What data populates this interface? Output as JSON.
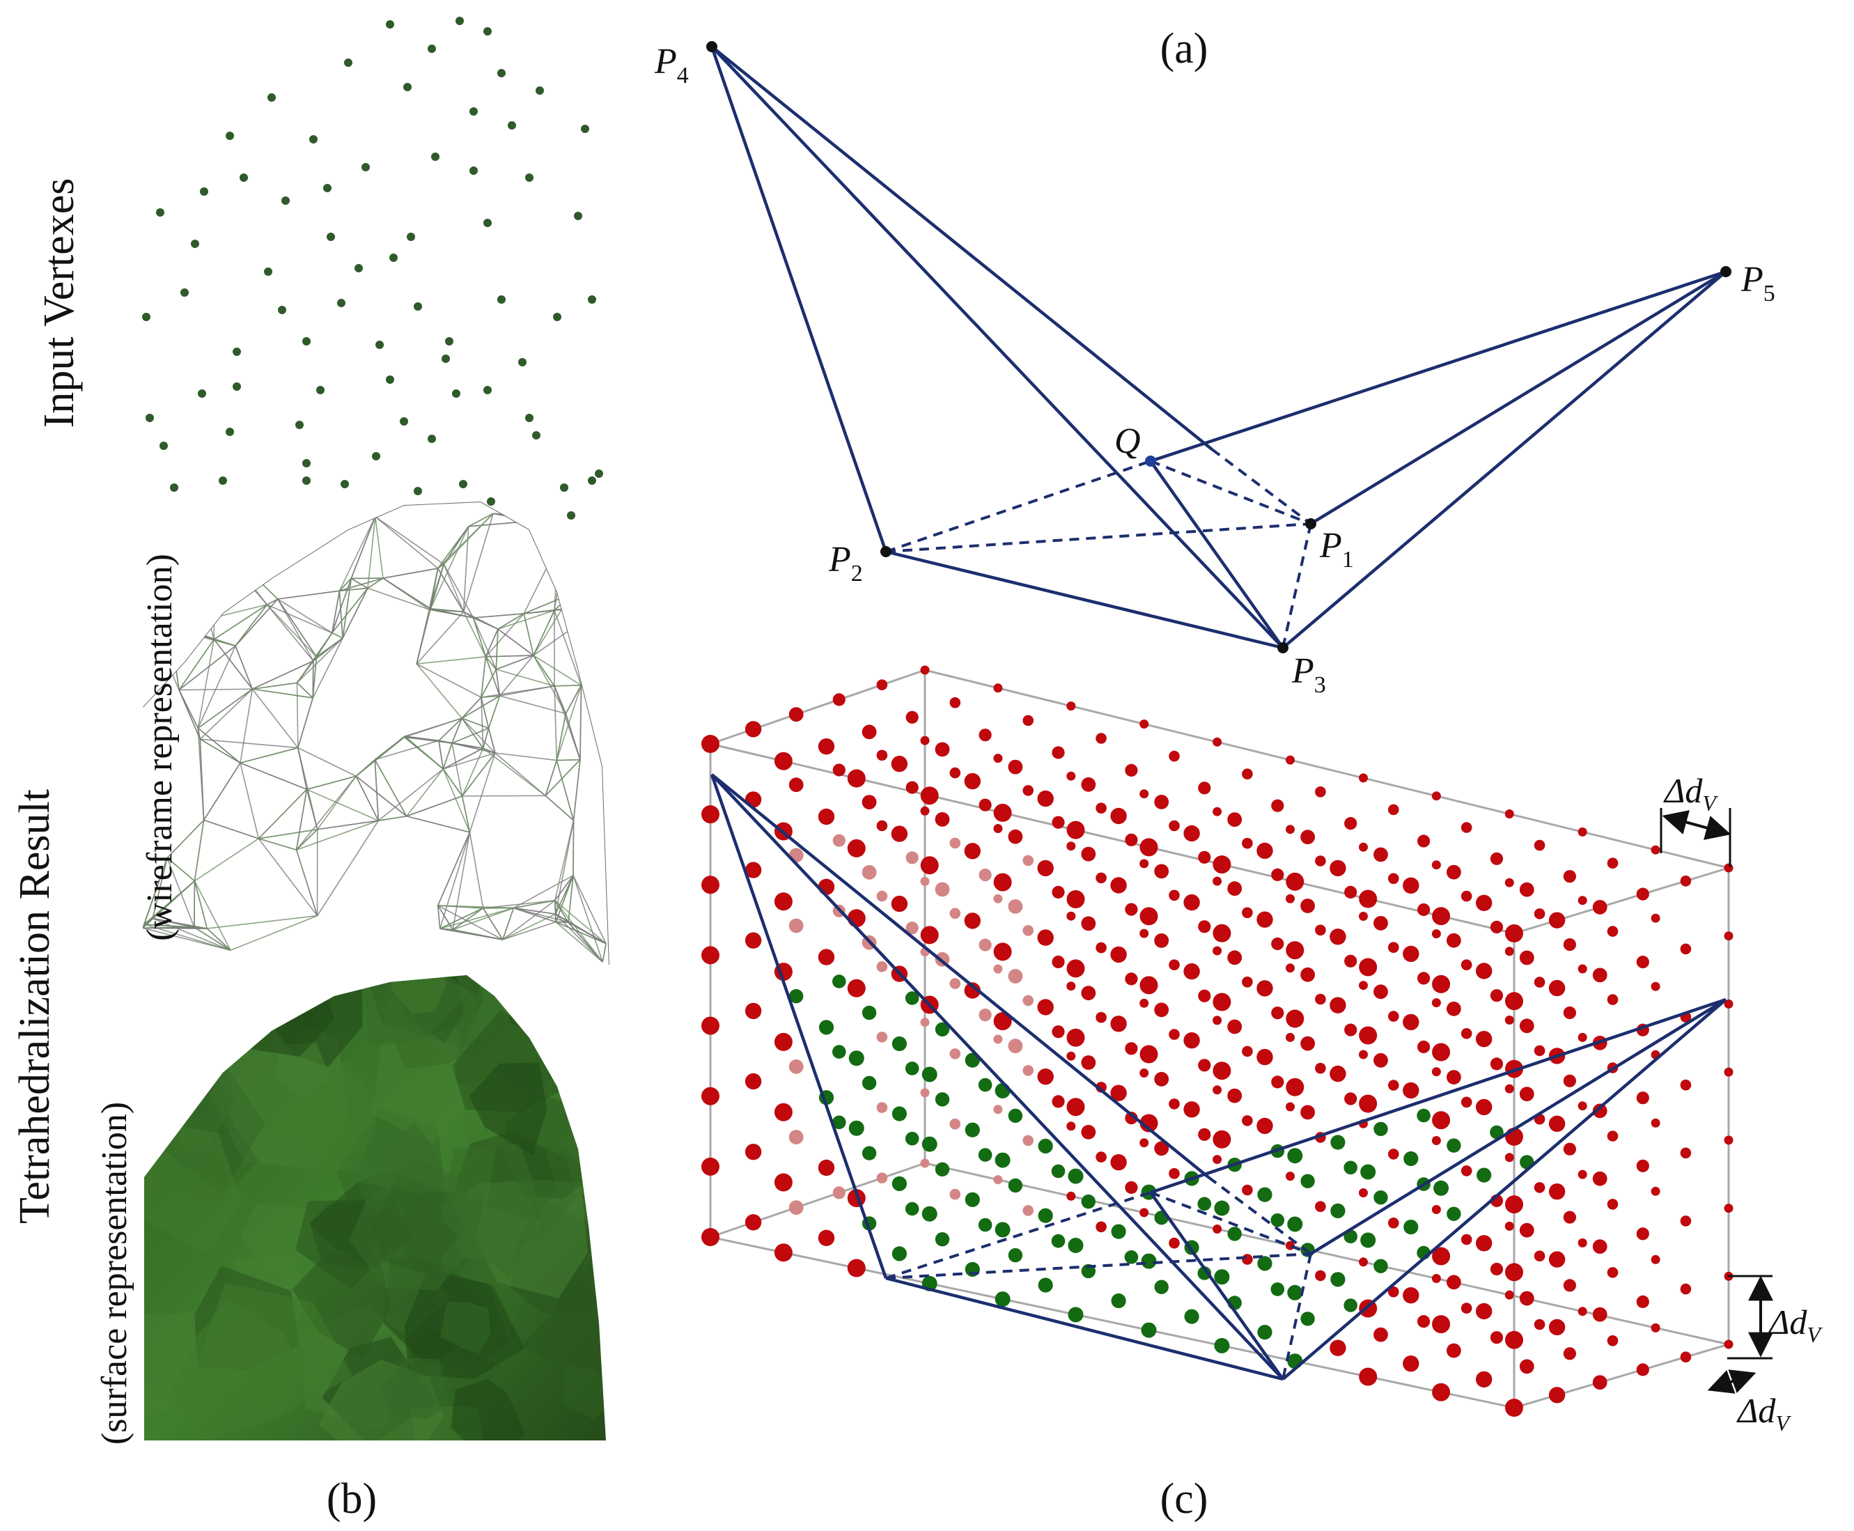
{
  "panel_labels": {
    "a": "(a)",
    "b": "(b)",
    "c": "(c)"
  },
  "side_labels": {
    "input": "Input Vertexes",
    "result_main": "Tetrahedralization Result",
    "result_wire": "(wireframe representation)",
    "result_surface": "(surface representation)"
  },
  "points": {
    "p4": {
      "base": "P",
      "sub": "4"
    },
    "p5": {
      "base": "P",
      "sub": "5"
    },
    "p2": {
      "base": "P",
      "sub": "2"
    },
    "p1": {
      "base": "P",
      "sub": "1"
    },
    "p3": {
      "base": "P",
      "sub": "3"
    },
    "q": "Q"
  },
  "delta": {
    "base": "Δd",
    "sub": "V"
  },
  "colors": {
    "edge": "#1c2e6e",
    "outside": "#c0080d",
    "outside_back": "#d48585",
    "inside": "#136b12",
    "box": "#a8a8a8",
    "mesh_green": "#3e7a2e"
  }
}
